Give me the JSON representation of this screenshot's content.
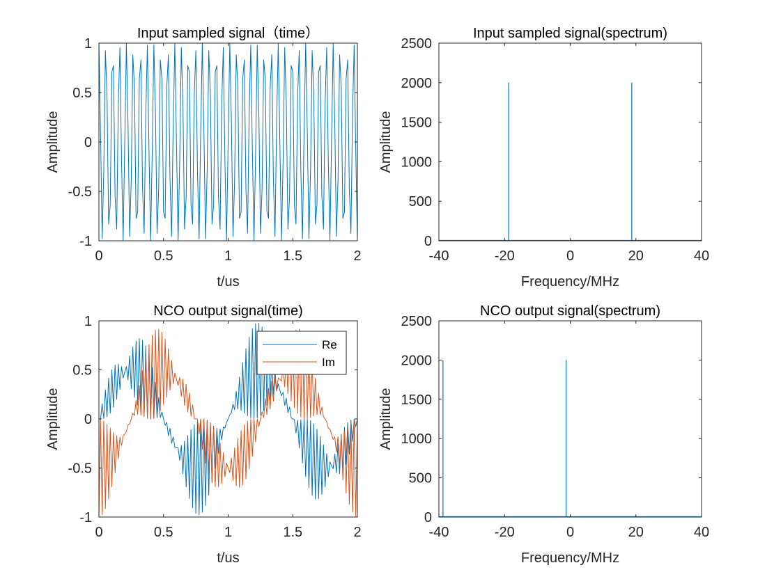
{
  "colors": {
    "re": "#0072BD",
    "im": "#D95319",
    "axis": "#262626"
  },
  "chart_data": [
    {
      "id": "tl",
      "type": "line",
      "title": "Input sampled signal（time）",
      "xlabel": "t/us",
      "ylabel": "Amplitude",
      "xlim": [
        0,
        2
      ],
      "ylim": [
        -1,
        1
      ],
      "xticks": [
        0,
        0.5,
        1,
        1.5,
        2
      ],
      "xticklabels": [
        "0",
        "0.5",
        "1",
        "1.5",
        "2"
      ],
      "yticks": [
        -1,
        -0.5,
        0,
        0.5,
        1
      ],
      "yticklabels": [
        "-1",
        "-0.5",
        "0",
        "0.5",
        "1"
      ],
      "series": [
        {
          "name": "signal",
          "kind": "sampled_cos",
          "freq_mhz": 18.75,
          "fs_mhz": 80,
          "duration_us": 2,
          "color": "#0072BD"
        }
      ]
    },
    {
      "id": "tr",
      "type": "line",
      "title": "Input sampled signal(spectrum)",
      "xlabel": "Frequency/MHz",
      "ylabel": "Amplitude",
      "xlim": [
        -40,
        40
      ],
      "ylim": [
        0,
        2500
      ],
      "xticks": [
        -40,
        -20,
        0,
        20,
        40
      ],
      "xticklabels": [
        "-40",
        "-20",
        "0",
        "20",
        "40"
      ],
      "yticks": [
        0,
        500,
        1000,
        1500,
        2000,
        2500
      ],
      "yticklabels": [
        "0",
        "500",
        "1000",
        "1500",
        "2000",
        "2500"
      ],
      "series": [
        {
          "name": "spectrum",
          "kind": "spikes",
          "x": [
            -18.75,
            18.75
          ],
          "values": [
            2000,
            2000
          ],
          "color": "#0072BD"
        }
      ]
    },
    {
      "id": "bl",
      "type": "line",
      "title": "NCO output signal(time)",
      "xlabel": "t/us",
      "ylabel": "Amplitude",
      "xlim": [
        0,
        2
      ],
      "ylim": [
        -1,
        1
      ],
      "xticks": [
        0,
        0.5,
        1,
        1.5,
        2
      ],
      "xticklabels": [
        "0",
        "0.5",
        "1",
        "1.5",
        "2"
      ],
      "yticks": [
        -1,
        -0.5,
        0,
        0.5,
        1
      ],
      "yticklabels": [
        "-1",
        "-0.5",
        "0",
        "0.5",
        "1"
      ],
      "legend": {
        "location": "top-right",
        "entries": [
          "Re",
          "Im"
        ]
      },
      "series": [
        {
          "name": "Re",
          "kind": "nco_re",
          "freq1_mhz": 1,
          "freq2_mhz": 38.75,
          "fs_mhz": 80,
          "duration_us": 2,
          "color": "#0072BD"
        },
        {
          "name": "Im",
          "kind": "nco_im",
          "freq1_mhz": 1,
          "freq2_mhz": 38.75,
          "fs_mhz": 80,
          "duration_us": 2,
          "color": "#D95319"
        }
      ]
    },
    {
      "id": "br",
      "type": "line",
      "title": "NCO output signal(spectrum)",
      "xlabel": "Frequency/MHz",
      "ylabel": "Amplitude",
      "xlim": [
        -40,
        40
      ],
      "ylim": [
        0,
        2500
      ],
      "xticks": [
        -40,
        -20,
        0,
        20,
        40
      ],
      "xticklabels": [
        "-40",
        "-20",
        "0",
        "20",
        "40"
      ],
      "yticks": [
        0,
        500,
        1000,
        1500,
        2000,
        2500
      ],
      "yticklabels": [
        "0",
        "500",
        "1000",
        "1500",
        "2000",
        "2500"
      ],
      "series": [
        {
          "name": "spectrum",
          "kind": "spikes",
          "x": [
            -38.75,
            -1.25
          ],
          "values": [
            2000,
            2000
          ],
          "color": "#0072BD"
        }
      ]
    }
  ]
}
